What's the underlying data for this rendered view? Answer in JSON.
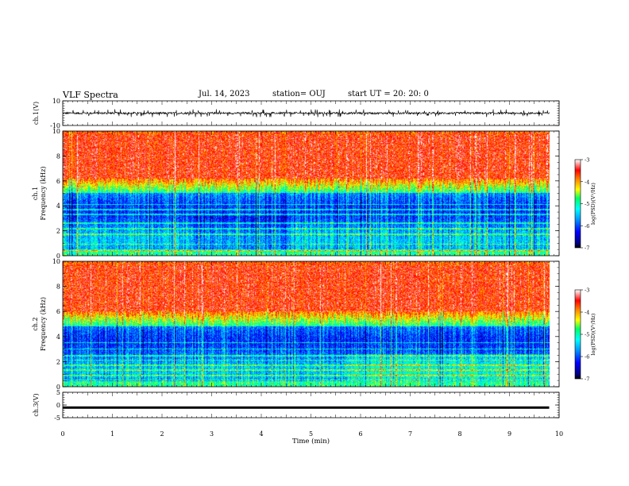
{
  "header": {
    "title": "VLF Spectra",
    "date": "Jul. 14, 2023",
    "station": "station= OUJ",
    "start": "start UT =  20: 20: 0"
  },
  "chart_data": [
    {
      "type": "line",
      "panel": "ch1-waveform",
      "ylabel": "ch.1(V)",
      "ylim": [
        -10,
        10
      ],
      "yticks": [
        "10",
        "-10"
      ],
      "xlim": [
        0,
        10
      ],
      "description_values": {
        "baseline": 0,
        "typical_amplitude": 1.5,
        "max_spike": 2.5,
        "data_end_min": 9.8
      }
    },
    {
      "type": "heatmap",
      "panel": "ch1-spectrogram",
      "ylabel_line1": "ch.1",
      "ylabel_line2": "Frequency (kHz)",
      "ylim": [
        0,
        10
      ],
      "yticks": [
        "0",
        "2",
        "4",
        "6",
        "8",
        "10"
      ],
      "xlim": [
        0,
        9.8
      ],
      "colorbar": {
        "label": "log(PSD)(V²/Hz)",
        "range": [
          -7,
          -3
        ],
        "ticks": [
          "-3",
          "-4",
          "-5",
          "-6",
          "-7"
        ]
      },
      "bands_khz": {
        "low_band_top": 5.0,
        "transition_top": 6.2
      }
    },
    {
      "type": "heatmap",
      "panel": "ch2-spectrogram",
      "ylabel_line1": "ch.2",
      "ylabel_line2": "Frequency (kHz)",
      "ylim": [
        0,
        10
      ],
      "yticks": [
        "0",
        "2",
        "4",
        "6",
        "8",
        "10"
      ],
      "xlim": [
        0,
        9.8
      ],
      "colorbar": {
        "label": "log(PSD)(V²/Hz)",
        "range": [
          -7,
          -3
        ],
        "ticks": [
          "-3",
          "-4",
          "-5",
          "-6",
          "-7"
        ]
      },
      "bands_khz": {
        "low_band_top": 4.8,
        "transition_top": 6.0
      }
    },
    {
      "type": "line",
      "panel": "ch3-waveform",
      "ylabel": "ch.3(V)",
      "ylim": [
        -5,
        5
      ],
      "yticks": [
        "5",
        "0",
        "-5"
      ],
      "xlim": [
        0,
        10
      ],
      "description_values": {
        "baseline": -1.0,
        "data_end_min": 9.8
      }
    }
  ],
  "x_axis": {
    "label": "Time (min)",
    "ticks": [
      "0",
      "1",
      "2",
      "3",
      "4",
      "5",
      "6",
      "7",
      "8",
      "9",
      "10"
    ]
  }
}
